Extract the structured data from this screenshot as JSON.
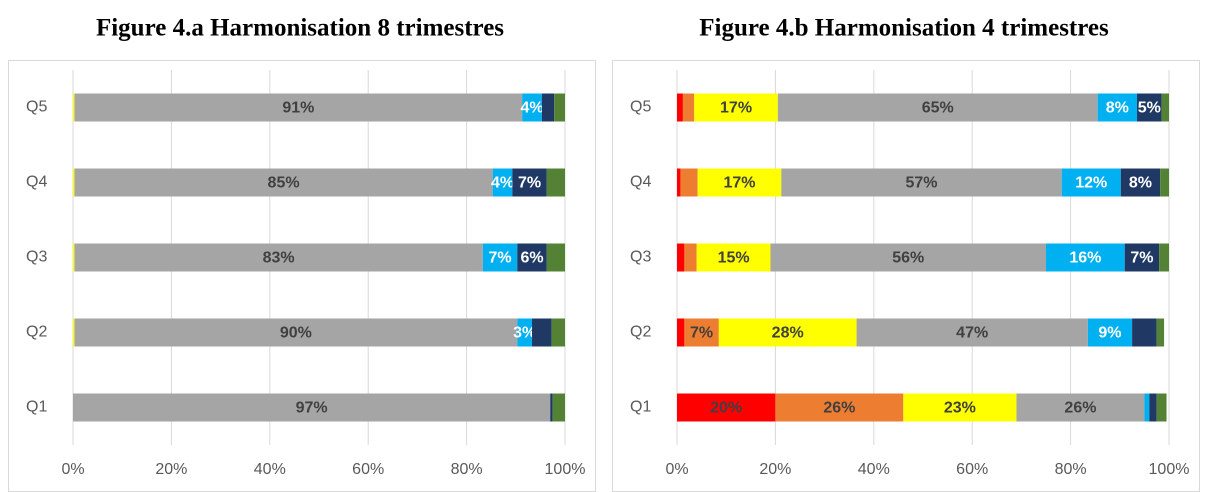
{
  "chart_data": [
    {
      "type": "stacked_bar_h",
      "title": "Figure 4.a Harmonisation 8 trimestres",
      "categories": [
        "Q1",
        "Q2",
        "Q3",
        "Q4",
        "Q5"
      ],
      "xlim": [
        0,
        100
      ],
      "xticks": [
        {
          "value": 0,
          "label": "0%"
        },
        {
          "value": 20,
          "label": "20%"
        },
        {
          "value": 40,
          "label": "40%"
        },
        {
          "value": 60,
          "label": "60%"
        },
        {
          "value": 80,
          "label": "80%"
        },
        {
          "value": 100,
          "label": "100%"
        }
      ],
      "grid": true,
      "series": [
        {
          "color": "#ff0000",
          "label_color": "#404040",
          "values": [
            0,
            0,
            0,
            0,
            0
          ],
          "value_labels": [
            null,
            null,
            null,
            null,
            null
          ]
        },
        {
          "color": "#ed7d31",
          "label_color": "#404040",
          "values": [
            0,
            0,
            0,
            0,
            0
          ],
          "value_labels": [
            null,
            null,
            null,
            null,
            null
          ]
        },
        {
          "color": "#ffff00",
          "label_color": "#404040",
          "values": [
            0,
            0.3,
            0.3,
            0.3,
            0.3
          ],
          "value_labels": [
            null,
            null,
            null,
            null,
            null
          ]
        },
        {
          "color": "#a5a5a5",
          "label_color": "#404040",
          "values": [
            97,
            90,
            83,
            85,
            91
          ],
          "value_labels": [
            "97%",
            "90%",
            "83%",
            "85%",
            "91%"
          ]
        },
        {
          "color": "#00b0f0",
          "label_color": "#ffffff",
          "values": [
            0,
            3,
            7,
            4,
            4
          ],
          "value_labels": [
            null,
            "3%",
            "7%",
            "4%",
            "4%"
          ]
        },
        {
          "color": "#1f3864",
          "label_color": "#ffffff",
          "values": [
            0.5,
            4,
            6,
            7,
            2.5
          ],
          "value_labels": [
            null,
            null,
            "6%",
            "7%",
            null
          ]
        },
        {
          "color": "#548235",
          "label_color": "#ffffff",
          "values": [
            2.5,
            2.7,
            3.7,
            3.7,
            2.2
          ],
          "value_labels": [
            null,
            null,
            null,
            null,
            null
          ]
        }
      ]
    },
    {
      "type": "stacked_bar_h",
      "title": "Figure 4.b Harmonisation 4 trimestres",
      "categories": [
        "Q1",
        "Q2",
        "Q3",
        "Q4",
        "Q5"
      ],
      "xlim": [
        0,
        100
      ],
      "xticks": [
        {
          "value": 0,
          "label": "0%"
        },
        {
          "value": 20,
          "label": "20%"
        },
        {
          "value": 40,
          "label": "40%"
        },
        {
          "value": 60,
          "label": "60%"
        },
        {
          "value": 80,
          "label": "80%"
        },
        {
          "value": 100,
          "label": "100%"
        }
      ],
      "grid": true,
      "series": [
        {
          "color": "#ff0000",
          "label_color": "#404040",
          "values": [
            20,
            1.5,
            1.5,
            0.7,
            1.2
          ],
          "value_labels": [
            "20%",
            null,
            null,
            null,
            null
          ]
        },
        {
          "color": "#ed7d31",
          "label_color": "#404040",
          "values": [
            26,
            7,
            2.5,
            3.5,
            2.3
          ],
          "value_labels": [
            "26%",
            "7%",
            null,
            null,
            null
          ]
        },
        {
          "color": "#ffff00",
          "label_color": "#404040",
          "values": [
            23,
            28,
            15,
            17,
            17
          ],
          "value_labels": [
            "23%",
            "28%",
            "15%",
            "17%",
            "17%"
          ]
        },
        {
          "color": "#a5a5a5",
          "label_color": "#404040",
          "values": [
            26,
            47,
            56,
            57,
            65
          ],
          "value_labels": [
            "26%",
            "47%",
            "56%",
            "57%",
            "65%"
          ]
        },
        {
          "color": "#00b0f0",
          "label_color": "#ffffff",
          "values": [
            1,
            9,
            16,
            12,
            8
          ],
          "value_labels": [
            null,
            "9%",
            "16%",
            "12%",
            "8%"
          ]
        },
        {
          "color": "#1f3864",
          "label_color": "#ffffff",
          "values": [
            1.5,
            5,
            7,
            8,
            5
          ],
          "value_labels": [
            null,
            null,
            "7%",
            "8%",
            "5%"
          ]
        },
        {
          "color": "#548235",
          "label_color": "#ffffff",
          "values": [
            2,
            1.5,
            2,
            1.8,
            1.5
          ],
          "value_labels": [
            null,
            null,
            null,
            null,
            null
          ]
        }
      ]
    }
  ]
}
